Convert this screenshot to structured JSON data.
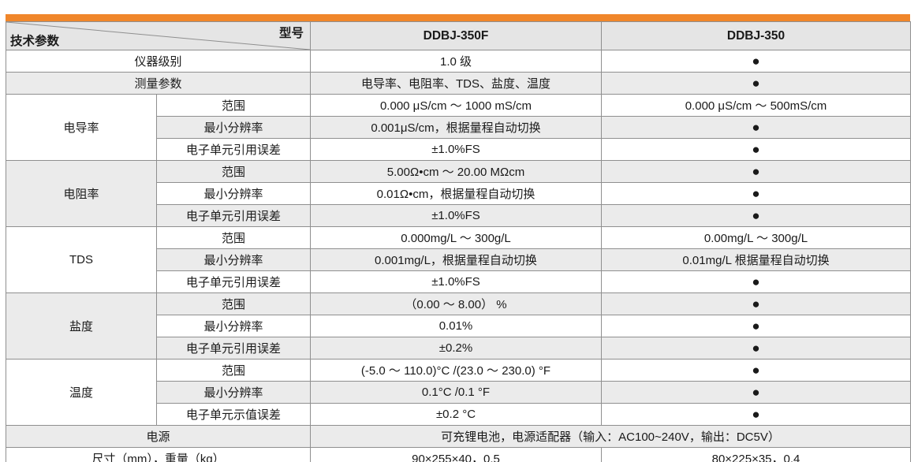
{
  "colors": {
    "accent": "#F0862A",
    "stripe": "#EBEBEB",
    "header_bg": "#E5E5E5",
    "border": "#8F8F8F",
    "marker": "#111111"
  },
  "table": {
    "corner": {
      "top_right": "型号",
      "bottom_left": "技术参数"
    },
    "columns": [
      "DDBJ-350F",
      "DDBJ-350"
    ],
    "marker_glyph": "●",
    "rows": [
      {
        "stripe": false,
        "cells": [
          {
            "t": "仪器级别",
            "cs": 2,
            "kind": "label"
          },
          {
            "t": "1.0 级"
          },
          {
            "t": "●",
            "dot": true
          }
        ]
      },
      {
        "stripe": true,
        "cells": [
          {
            "t": "测量参数",
            "cs": 2,
            "kind": "label"
          },
          {
            "t": "电导率、电阻率、TDS、盐度、温度"
          },
          {
            "t": "●",
            "dot": true
          }
        ]
      },
      {
        "stripe": false,
        "cells": [
          {
            "t": "电导率",
            "rs": 3,
            "kind": "cat"
          },
          {
            "t": "范围",
            "kind": "label"
          },
          {
            "t": "0.000 μS/cm ～ 1000 mS/cm"
          },
          {
            "t": "0.000 μS/cm ～ 500mS/cm"
          }
        ]
      },
      {
        "stripe": true,
        "cells": [
          {
            "t": "最小分辨率",
            "kind": "label"
          },
          {
            "t": "0.001μS/cm，根据量程自动切换"
          },
          {
            "t": "●",
            "dot": true
          }
        ]
      },
      {
        "stripe": false,
        "cells": [
          {
            "t": "电子单元引用误差",
            "kind": "label"
          },
          {
            "t": "±1.0%FS"
          },
          {
            "t": "●",
            "dot": true
          }
        ]
      },
      {
        "stripe": true,
        "cells": [
          {
            "t": "电阻率",
            "rs": 3,
            "kind": "cat"
          },
          {
            "t": "范围",
            "kind": "label"
          },
          {
            "t": "5.00Ω•cm ～ 20.00 MΩcm"
          },
          {
            "t": "●",
            "dot": true
          }
        ]
      },
      {
        "stripe": false,
        "cells": [
          {
            "t": "最小分辨率",
            "kind": "label"
          },
          {
            "t": "0.01Ω•cm，根据量程自动切换"
          },
          {
            "t": "●",
            "dot": true
          }
        ]
      },
      {
        "stripe": true,
        "cells": [
          {
            "t": "电子单元引用误差",
            "kind": "label"
          },
          {
            "t": "±1.0%FS"
          },
          {
            "t": "●",
            "dot": true
          }
        ]
      },
      {
        "stripe": false,
        "cells": [
          {
            "t": "TDS",
            "rs": 3,
            "kind": "cat"
          },
          {
            "t": "范围",
            "kind": "label"
          },
          {
            "t": "0.000mg/L ～ 300g/L"
          },
          {
            "t": "0.00mg/L ～ 300g/L"
          }
        ]
      },
      {
        "stripe": true,
        "cells": [
          {
            "t": "最小分辨率",
            "kind": "label"
          },
          {
            "t": "0.001mg/L，根据量程自动切换"
          },
          {
            "t": "0.01mg/L 根据量程自动切换"
          }
        ]
      },
      {
        "stripe": false,
        "cells": [
          {
            "t": "电子单元引用误差",
            "kind": "label"
          },
          {
            "t": "±1.0%FS"
          },
          {
            "t": "●",
            "dot": true
          }
        ]
      },
      {
        "stripe": true,
        "cells": [
          {
            "t": "盐度",
            "rs": 3,
            "kind": "cat"
          },
          {
            "t": "范围",
            "kind": "label"
          },
          {
            "t": "（0.00 ～ 8.00） %"
          },
          {
            "t": "●",
            "dot": true
          }
        ]
      },
      {
        "stripe": false,
        "cells": [
          {
            "t": "最小分辨率",
            "kind": "label"
          },
          {
            "t": "0.01%"
          },
          {
            "t": "●",
            "dot": true
          }
        ]
      },
      {
        "stripe": true,
        "cells": [
          {
            "t": "电子单元引用误差",
            "kind": "label"
          },
          {
            "t": "±0.2%"
          },
          {
            "t": "●",
            "dot": true
          }
        ]
      },
      {
        "stripe": false,
        "cells": [
          {
            "t": "温度",
            "rs": 3,
            "kind": "cat"
          },
          {
            "t": "范围",
            "kind": "label"
          },
          {
            "t": "(-5.0 ～ 110.0)°C /(23.0 ～ 230.0) °F"
          },
          {
            "t": "●",
            "dot": true
          }
        ]
      },
      {
        "stripe": true,
        "cells": [
          {
            "t": "最小分辨率",
            "kind": "label"
          },
          {
            "t": "0.1°C /0.1 °F"
          },
          {
            "t": "●",
            "dot": true
          }
        ]
      },
      {
        "stripe": false,
        "cells": [
          {
            "t": "电子单元示值误差",
            "kind": "label"
          },
          {
            "t": "±0.2 °C"
          },
          {
            "t": "●",
            "dot": true
          }
        ]
      },
      {
        "stripe": true,
        "cells": [
          {
            "t": "电源",
            "cs": 2,
            "kind": "label"
          },
          {
            "t": "可充锂电池，电源适配器（输入：AC100~240V，输出：DC5V）",
            "cs": 2
          }
        ]
      },
      {
        "stripe": false,
        "cells": [
          {
            "t": "尺寸（mm），重量（kg）",
            "cs": 2,
            "kind": "label"
          },
          {
            "t": "90×255×40，0.5"
          },
          {
            "t": "80×225×35，0.4"
          }
        ]
      }
    ]
  }
}
